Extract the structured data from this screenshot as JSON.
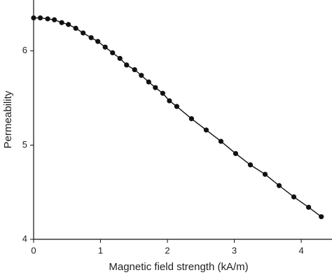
{
  "chart_data": {
    "type": "line",
    "x_label": "Magnetic field strength (kA/m)",
    "y_label": "Permeability",
    "x": [
      0,
      0.1,
      0.21,
      0.31,
      0.42,
      0.52,
      0.63,
      0.74,
      0.86,
      0.96,
      1.07,
      1.18,
      1.29,
      1.39,
      1.51,
      1.61,
      1.72,
      1.82,
      1.93,
      2.03,
      2.14,
      2.36,
      2.58,
      2.8,
      3.02,
      3.24,
      3.46,
      3.67,
      3.89,
      4.11,
      4.3
    ],
    "series": [
      {
        "color": "#111111",
        "values": [
          6.35,
          6.35,
          6.34,
          6.33,
          6.3,
          6.28,
          6.24,
          6.19,
          6.14,
          6.1,
          6.04,
          5.98,
          5.92,
          5.85,
          5.8,
          5.74,
          5.67,
          5.61,
          5.55,
          5.47,
          5.41,
          5.28,
          5.16,
          5.04,
          4.91,
          4.79,
          4.69,
          4.57,
          4.45,
          4.34,
          4.24
        ]
      }
    ],
    "xlim": [
      0,
      4.46
    ],
    "xticks": [
      0,
      1,
      2,
      3,
      4
    ],
    "ylim": [
      4,
      6.54
    ],
    "yticks": [
      4,
      5,
      6
    ],
    "markers": true
  }
}
